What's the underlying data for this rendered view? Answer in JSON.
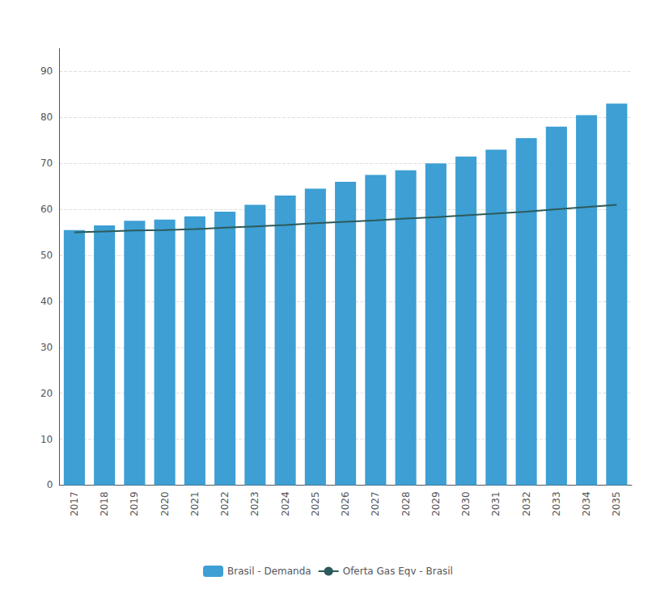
{
  "chart_data": {
    "type": "bar",
    "categories": [
      "2017",
      "2018",
      "2019",
      "2020",
      "2021",
      "2022",
      "2023",
      "2024",
      "2025",
      "2026",
      "2027",
      "2028",
      "2029",
      "2030",
      "2031",
      "2032",
      "2033",
      "2034",
      "2035"
    ],
    "series": [
      {
        "name": "Brasil - Demanda",
        "type": "bar",
        "color": "#3d9fd3",
        "values": [
          55.5,
          56.5,
          57.5,
          57.8,
          58.5,
          59.5,
          61.0,
          63.0,
          64.5,
          66.0,
          67.5,
          68.5,
          70.0,
          71.5,
          73.0,
          75.5,
          78.0,
          80.5,
          83.0
        ]
      },
      {
        "name": "Oferta Gas Eqv - Brasil",
        "type": "line",
        "color": "#2d5a5a",
        "values": [
          55.0,
          55.2,
          55.4,
          55.5,
          55.7,
          56.0,
          56.3,
          56.6,
          57.0,
          57.3,
          57.6,
          58.0,
          58.3,
          58.7,
          59.1,
          59.5,
          60.0,
          60.5,
          61.0
        ]
      }
    ],
    "ylim": [
      0,
      95
    ],
    "yticks": [
      0,
      10,
      20,
      30,
      40,
      50,
      60,
      70,
      80,
      90
    ],
    "grid": true,
    "legend": "bottom"
  }
}
